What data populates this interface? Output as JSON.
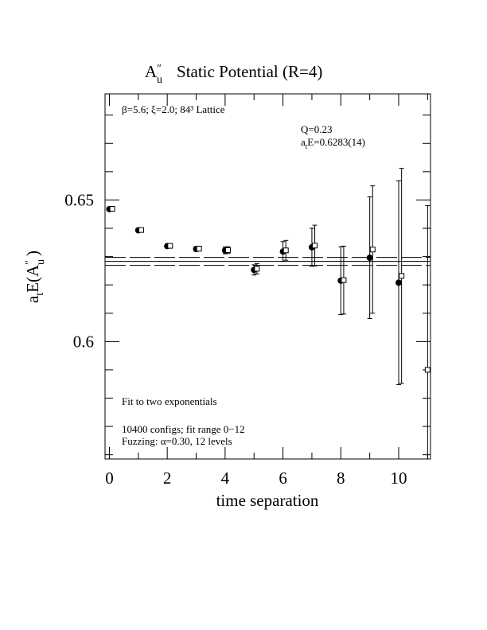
{
  "chart_data": {
    "type": "scatter",
    "title_main": "A",
    "title_prime": "″",
    "title_sub": "u",
    "title_rest": "Static Potential (R=4)",
    "xlabel": "time separation",
    "ylabel": {
      "p1": "a",
      "s1": "t",
      "p2": "E(A",
      "prime": "″",
      "s2": "u",
      "p3": ")"
    },
    "xlim": [
      -0.15,
      11.1
    ],
    "ylim": [
      0.5585,
      0.6875
    ],
    "x_ticks": [
      0,
      2,
      4,
      6,
      8,
      10
    ],
    "x_tick_labels": [
      "0",
      "2",
      "4",
      "6",
      "8",
      "10"
    ],
    "y_ticks": [
      0.6,
      0.65
    ],
    "y_tick_labels": [
      "0.6",
      "0.65"
    ],
    "annotations": {
      "params": "β=5.6; ξ=2.0; 84³ Lattice",
      "q": "Q=0.23",
      "energy_p1": "a",
      "energy_sub": "t",
      "energy_p2": "E=0.6283(14)",
      "fit_type": "Fit to two exponentials",
      "configs": "10400 configs; fit range 0−12",
      "fuzzing": "Fuzzing: α=0.30, 12 levels"
    },
    "fit": {
      "value": 0.6283,
      "upper": 0.6297,
      "lower": 0.6269
    },
    "series": [
      {
        "marker": "filled-circle",
        "x": [
          0,
          1,
          2,
          3,
          4,
          5,
          6,
          7,
          8,
          9,
          10
        ],
        "y": [
          0.6468,
          0.6393,
          0.6337,
          0.6327,
          0.6322,
          0.6253,
          0.6318,
          0.6333,
          0.6215,
          0.6296,
          0.6208
        ],
        "err": [
          0.0005,
          0.0006,
          0.0007,
          0.0008,
          0.0012,
          0.0018,
          0.0035,
          0.0067,
          0.012,
          0.0215,
          0.036
        ]
      },
      {
        "marker": "open-square",
        "x": [
          0.1,
          1.1,
          2.1,
          3.1,
          4.1,
          5.1,
          6.1,
          7.1,
          8.1,
          9.1,
          10.1,
          11.0
        ],
        "y": [
          0.6469,
          0.6394,
          0.6338,
          0.6328,
          0.6323,
          0.6257,
          0.6322,
          0.6339,
          0.6217,
          0.6325,
          0.6232,
          0.59
        ],
        "err": [
          0.0005,
          0.0006,
          0.0007,
          0.0008,
          0.0012,
          0.0018,
          0.0035,
          0.0072,
          0.012,
          0.0225,
          0.038,
          0.058
        ]
      }
    ]
  }
}
